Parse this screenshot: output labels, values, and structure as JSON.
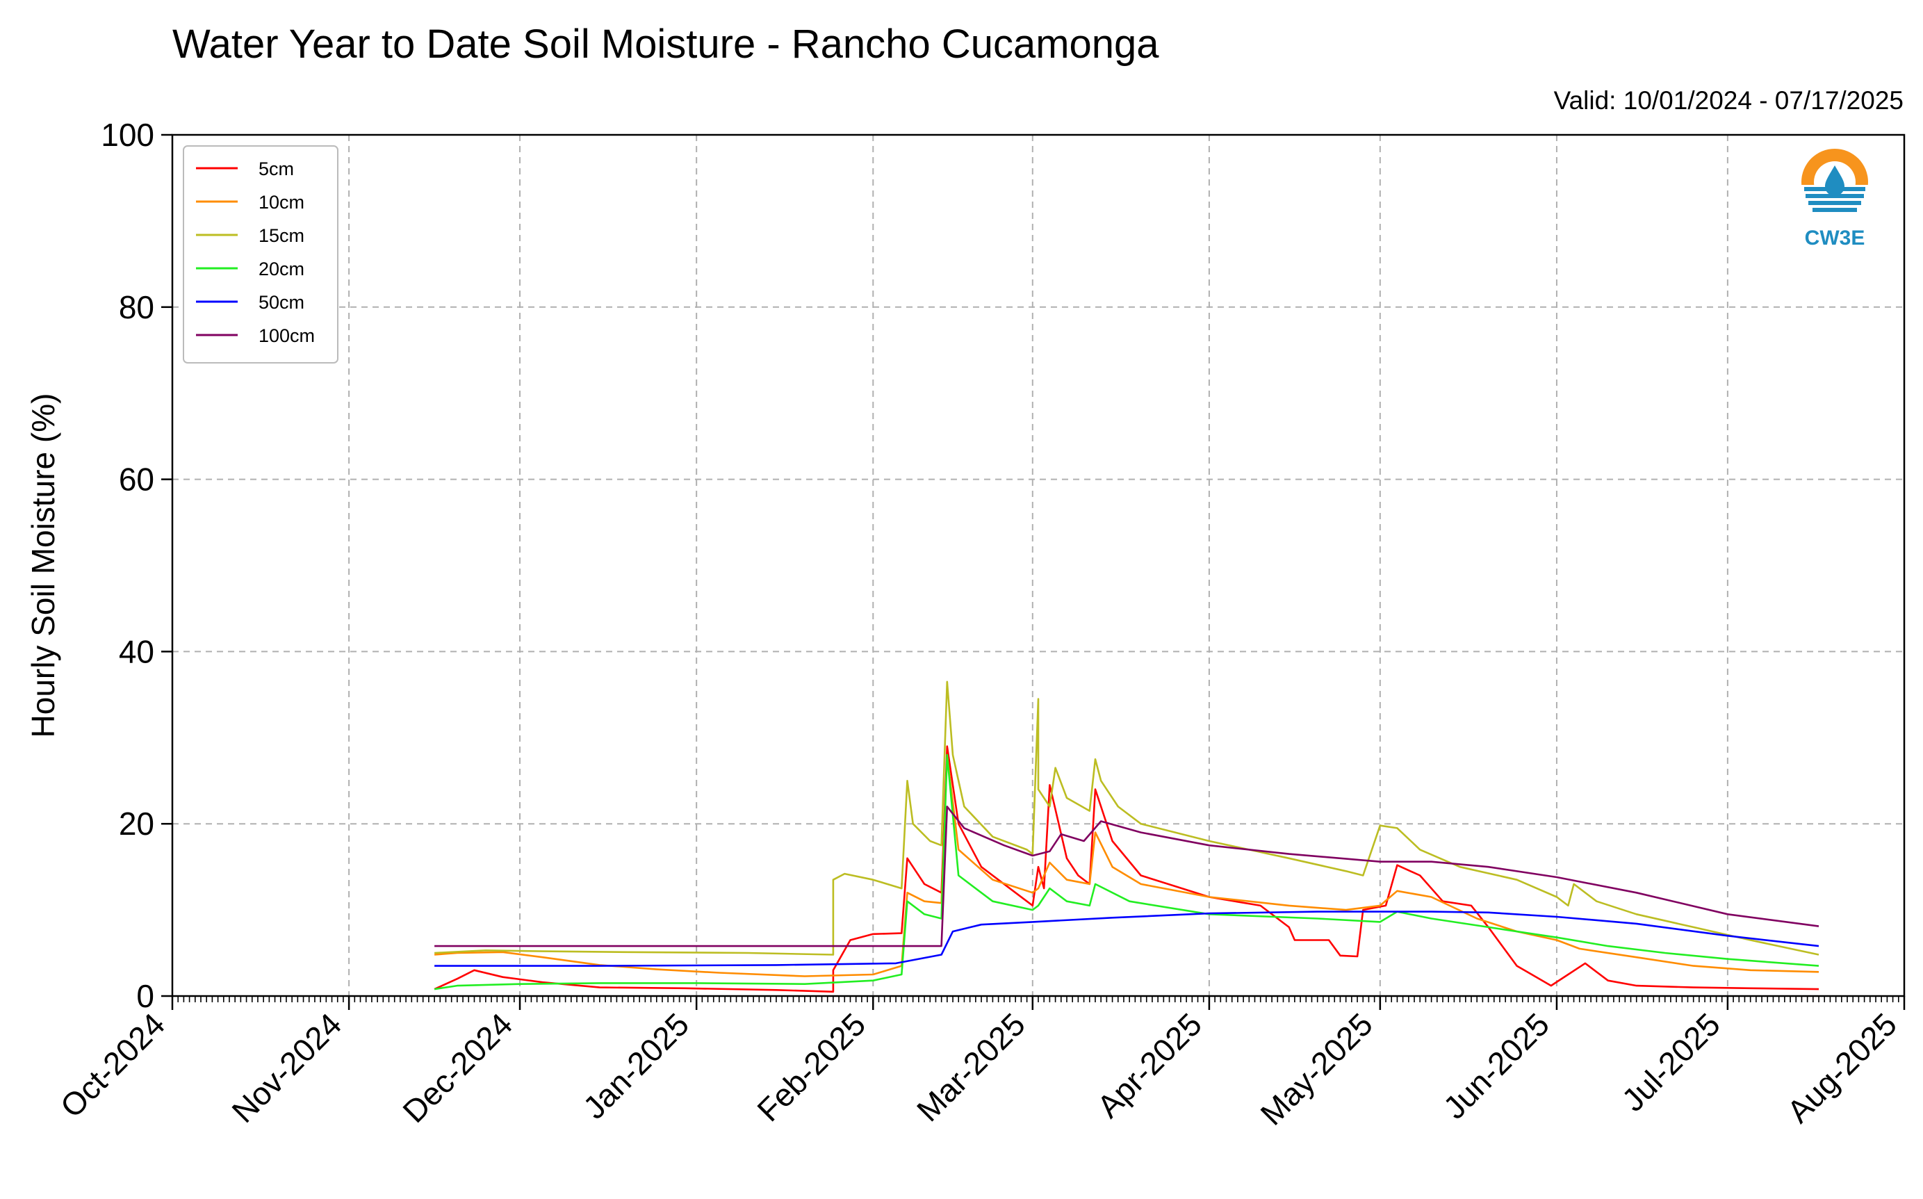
{
  "chart_data": {
    "type": "line",
    "title": "Water Year to Date Soil Moisture - Rancho Cucamonga",
    "subtitle": "Valid: 10/01/2024 - 07/17/2025",
    "xlabel": "",
    "ylabel": "Hourly Soil Moisture (%)",
    "xlim": [
      "2024-10-01",
      "2025-08-01"
    ],
    "ylim": [
      0,
      100
    ],
    "grid": true,
    "legend_position": "top-left",
    "x_ticks": [
      "Oct-2024",
      "Nov-2024",
      "Dec-2024",
      "Jan-2025",
      "Feb-2025",
      "Mar-2025",
      "Apr-2025",
      "May-2025",
      "Jun-2025",
      "Jul-2025",
      "Aug-2025"
    ],
    "y_ticks": [
      0,
      20,
      40,
      60,
      80,
      100
    ],
    "logo_text": "CW3E",
    "series": [
      {
        "name": "5cm",
        "color": "#ff0000",
        "points": [
          [
            "2024-11-16",
            0.8
          ],
          [
            "2024-11-20",
            2.0
          ],
          [
            "2024-11-23",
            3.0
          ],
          [
            "2024-11-28",
            2.2
          ],
          [
            "2024-12-05",
            1.6
          ],
          [
            "2024-12-15",
            1.0
          ],
          [
            "2024-12-30",
            0.9
          ],
          [
            "2025-01-15",
            0.7
          ],
          [
            "2025-01-25",
            0.5
          ],
          [
            "2025-01-25",
            3.0
          ],
          [
            "2025-01-28",
            6.5
          ],
          [
            "2025-02-01",
            7.2
          ],
          [
            "2025-02-06",
            7.3
          ],
          [
            "2025-02-07",
            16.0
          ],
          [
            "2025-02-10",
            13.0
          ],
          [
            "2025-02-13",
            12.0
          ],
          [
            "2025-02-14",
            29.0
          ],
          [
            "2025-02-16",
            20.0
          ],
          [
            "2025-02-20",
            15.0
          ],
          [
            "2025-02-28",
            11.0
          ],
          [
            "2025-03-01",
            10.5
          ],
          [
            "2025-03-02",
            15.0
          ],
          [
            "2025-03-03",
            12.5
          ],
          [
            "2025-03-04",
            24.5
          ],
          [
            "2025-03-07",
            16.0
          ],
          [
            "2025-03-09",
            14.0
          ],
          [
            "2025-03-11",
            13.0
          ],
          [
            "2025-03-12",
            24.0
          ],
          [
            "2025-03-15",
            18.0
          ],
          [
            "2025-03-20",
            14.0
          ],
          [
            "2025-04-01",
            11.5
          ],
          [
            "2025-04-10",
            10.5
          ],
          [
            "2025-04-15",
            8.0
          ],
          [
            "2025-04-16",
            6.5
          ],
          [
            "2025-04-22",
            6.5
          ],
          [
            "2025-04-24",
            4.7
          ],
          [
            "2025-04-27",
            4.6
          ],
          [
            "2025-04-28",
            10.0
          ],
          [
            "2025-05-02",
            10.5
          ],
          [
            "2025-05-04",
            15.2
          ],
          [
            "2025-05-08",
            14.0
          ],
          [
            "2025-05-12",
            11.0
          ],
          [
            "2025-05-17",
            10.5
          ],
          [
            "2025-05-20",
            8.0
          ],
          [
            "2025-05-25",
            3.5
          ],
          [
            "2025-05-31",
            1.2
          ],
          [
            "2025-06-03",
            2.5
          ],
          [
            "2025-06-06",
            3.8
          ],
          [
            "2025-06-10",
            1.8
          ],
          [
            "2025-06-15",
            1.2
          ],
          [
            "2025-06-25",
            1.0
          ],
          [
            "2025-07-05",
            0.9
          ],
          [
            "2025-07-17",
            0.8
          ]
        ]
      },
      {
        "name": "10cm",
        "color": "#ff8c00",
        "points": [
          [
            "2024-11-16",
            4.8
          ],
          [
            "2024-11-20",
            5.0
          ],
          [
            "2024-11-28",
            5.1
          ],
          [
            "2024-12-05",
            4.5
          ],
          [
            "2024-12-15",
            3.6
          ],
          [
            "2024-12-25",
            3.1
          ],
          [
            "2025-01-05",
            2.7
          ],
          [
            "2025-01-20",
            2.3
          ],
          [
            "2025-02-01",
            2.5
          ],
          [
            "2025-02-06",
            3.5
          ],
          [
            "2025-02-07",
            12.0
          ],
          [
            "2025-02-10",
            11.0
          ],
          [
            "2025-02-13",
            10.8
          ],
          [
            "2025-02-14",
            28.0
          ],
          [
            "2025-02-16",
            17.0
          ],
          [
            "2025-02-22",
            13.5
          ],
          [
            "2025-03-01",
            12.0
          ],
          [
            "2025-03-02",
            12.5
          ],
          [
            "2025-03-04",
            15.5
          ],
          [
            "2025-03-07",
            13.5
          ],
          [
            "2025-03-11",
            13.0
          ],
          [
            "2025-03-12",
            19.0
          ],
          [
            "2025-03-15",
            15.0
          ],
          [
            "2025-03-20",
            13.0
          ],
          [
            "2025-04-01",
            11.5
          ],
          [
            "2025-04-15",
            10.5
          ],
          [
            "2025-04-25",
            10.0
          ],
          [
            "2025-05-01",
            10.5
          ],
          [
            "2025-05-04",
            12.2
          ],
          [
            "2025-05-10",
            11.5
          ],
          [
            "2025-05-18",
            9.0
          ],
          [
            "2025-05-25",
            7.5
          ],
          [
            "2025-06-01",
            6.5
          ],
          [
            "2025-06-05",
            5.5
          ],
          [
            "2025-06-15",
            4.5
          ],
          [
            "2025-06-25",
            3.5
          ],
          [
            "2025-07-05",
            3.0
          ],
          [
            "2025-07-17",
            2.8
          ]
        ]
      },
      {
        "name": "15cm",
        "color": "#bcbd22",
        "points": [
          [
            "2024-11-16",
            5.0
          ],
          [
            "2024-11-25",
            5.3
          ],
          [
            "2024-12-05",
            5.2
          ],
          [
            "2024-12-20",
            5.1
          ],
          [
            "2025-01-10",
            5.0
          ],
          [
            "2025-01-25",
            4.8
          ],
          [
            "2025-01-25",
            13.5
          ],
          [
            "2025-01-27",
            14.2
          ],
          [
            "2025-02-01",
            13.5
          ],
          [
            "2025-02-06",
            12.5
          ],
          [
            "2025-02-07",
            25.0
          ],
          [
            "2025-02-08",
            20.0
          ],
          [
            "2025-02-11",
            18.0
          ],
          [
            "2025-02-13",
            17.5
          ],
          [
            "2025-02-14",
            36.5
          ],
          [
            "2025-02-15",
            28.0
          ],
          [
            "2025-02-17",
            22.0
          ],
          [
            "2025-02-22",
            18.5
          ],
          [
            "2025-02-28",
            17.0
          ],
          [
            "2025-03-01",
            16.5
          ],
          [
            "2025-03-02",
            34.5
          ],
          [
            "2025-03-02",
            24.0
          ],
          [
            "2025-03-04",
            22.0
          ],
          [
            "2025-03-05",
            26.5
          ],
          [
            "2025-03-07",
            23.0
          ],
          [
            "2025-03-11",
            21.5
          ],
          [
            "2025-03-12",
            27.5
          ],
          [
            "2025-03-13",
            25.0
          ],
          [
            "2025-03-16",
            22.0
          ],
          [
            "2025-03-20",
            20.0
          ],
          [
            "2025-04-01",
            18.0
          ],
          [
            "2025-04-15",
            16.0
          ],
          [
            "2025-04-25",
            14.5
          ],
          [
            "2025-04-28",
            14.0
          ],
          [
            "2025-05-01",
            19.8
          ],
          [
            "2025-05-04",
            19.5
          ],
          [
            "2025-05-08",
            17.0
          ],
          [
            "2025-05-15",
            15.0
          ],
          [
            "2025-05-25",
            13.5
          ],
          [
            "2025-06-01",
            11.5
          ],
          [
            "2025-06-03",
            10.5
          ],
          [
            "2025-06-04",
            13.0
          ],
          [
            "2025-06-08",
            11.0
          ],
          [
            "2025-06-15",
            9.5
          ],
          [
            "2025-06-25",
            8.0
          ],
          [
            "2025-07-05",
            6.5
          ],
          [
            "2025-07-17",
            4.8
          ]
        ]
      },
      {
        "name": "20cm",
        "color": "#22ee22",
        "points": [
          [
            "2024-11-16",
            0.8
          ],
          [
            "2024-11-20",
            1.2
          ],
          [
            "2024-12-01",
            1.4
          ],
          [
            "2024-12-15",
            1.5
          ],
          [
            "2025-01-01",
            1.5
          ],
          [
            "2025-01-20",
            1.4
          ],
          [
            "2025-02-01",
            1.8
          ],
          [
            "2025-02-06",
            2.5
          ],
          [
            "2025-02-07",
            11.0
          ],
          [
            "2025-02-10",
            9.5
          ],
          [
            "2025-02-13",
            9.0
          ],
          [
            "2025-02-14",
            28.0
          ],
          [
            "2025-02-16",
            14.0
          ],
          [
            "2025-02-22",
            11.0
          ],
          [
            "2025-03-01",
            10.0
          ],
          [
            "2025-03-02",
            10.5
          ],
          [
            "2025-03-04",
            12.5
          ],
          [
            "2025-03-07",
            11.0
          ],
          [
            "2025-03-11",
            10.5
          ],
          [
            "2025-03-12",
            13.0
          ],
          [
            "2025-03-18",
            11.0
          ],
          [
            "2025-04-01",
            9.5
          ],
          [
            "2025-04-20",
            9.0
          ],
          [
            "2025-05-01",
            8.6
          ],
          [
            "2025-05-04",
            9.8
          ],
          [
            "2025-05-10",
            9.0
          ],
          [
            "2025-05-20",
            8.0
          ],
          [
            "2025-06-01",
            6.8
          ],
          [
            "2025-06-10",
            5.8
          ],
          [
            "2025-06-20",
            5.0
          ],
          [
            "2025-07-01",
            4.3
          ],
          [
            "2025-07-17",
            3.5
          ]
        ]
      },
      {
        "name": "50cm",
        "color": "#0000ff",
        "points": [
          [
            "2024-11-16",
            3.5
          ],
          [
            "2024-12-15",
            3.5
          ],
          [
            "2025-01-15",
            3.6
          ],
          [
            "2025-02-05",
            3.8
          ],
          [
            "2025-02-13",
            4.8
          ],
          [
            "2025-02-15",
            7.5
          ],
          [
            "2025-02-20",
            8.3
          ],
          [
            "2025-03-01",
            8.6
          ],
          [
            "2025-03-15",
            9.1
          ],
          [
            "2025-04-01",
            9.6
          ],
          [
            "2025-04-20",
            9.8
          ],
          [
            "2025-05-10",
            9.8
          ],
          [
            "2025-05-20",
            9.7
          ],
          [
            "2025-06-01",
            9.2
          ],
          [
            "2025-06-15",
            8.4
          ],
          [
            "2025-07-01",
            7.0
          ],
          [
            "2025-07-17",
            5.8
          ]
        ]
      },
      {
        "name": "100cm",
        "color": "#800060",
        "points": [
          [
            "2024-11-16",
            5.8
          ],
          [
            "2024-12-15",
            5.8
          ],
          [
            "2025-01-15",
            5.8
          ],
          [
            "2025-02-13",
            5.8
          ],
          [
            "2025-02-14",
            22.0
          ],
          [
            "2025-02-17",
            19.5
          ],
          [
            "2025-02-24",
            17.5
          ],
          [
            "2025-03-01",
            16.3
          ],
          [
            "2025-03-04",
            16.8
          ],
          [
            "2025-03-06",
            18.8
          ],
          [
            "2025-03-10",
            18.0
          ],
          [
            "2025-03-13",
            20.3
          ],
          [
            "2025-03-20",
            19.0
          ],
          [
            "2025-04-01",
            17.5
          ],
          [
            "2025-04-15",
            16.5
          ],
          [
            "2025-05-01",
            15.6
          ],
          [
            "2025-05-10",
            15.6
          ],
          [
            "2025-05-20",
            15.0
          ],
          [
            "2025-06-01",
            13.8
          ],
          [
            "2025-06-15",
            12.0
          ],
          [
            "2025-07-01",
            9.5
          ],
          [
            "2025-07-17",
            8.1
          ]
        ]
      }
    ]
  }
}
